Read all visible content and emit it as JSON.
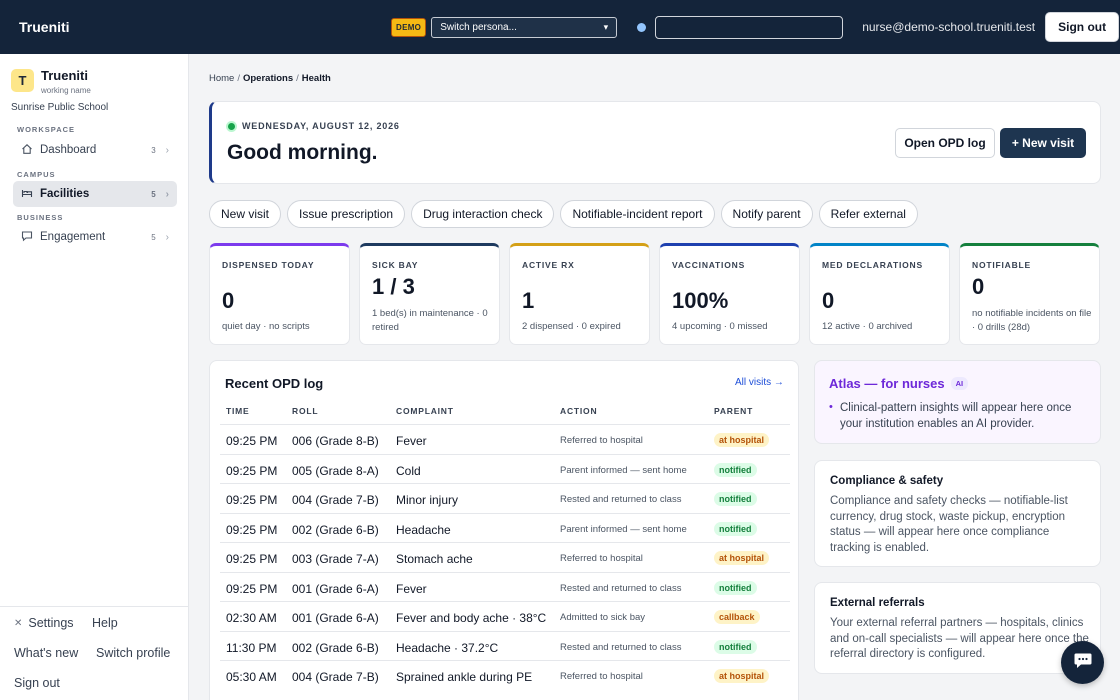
{
  "app": {
    "brand": "Trueniti",
    "demo_badge": "DEMO",
    "persona_select": "Switch persona...",
    "search_placeholder": "",
    "user_email": "nurse@demo-school.trueniti.test",
    "sign_out": "Sign out"
  },
  "sidebar": {
    "org_initial": "T",
    "org_name": "Trueniti",
    "org_sub": "working name",
    "school": "Sunrise Public School",
    "sections": [
      "WORKSPACE",
      "CAMPUS",
      "BUSINESS"
    ],
    "items": [
      {
        "label": "Dashboard",
        "count": "3",
        "icon": "home-icon"
      },
      {
        "label": "Facilities",
        "count": "5",
        "icon": "bed-icon"
      },
      {
        "label": "Engagement",
        "count": "5",
        "icon": "chat-icon"
      }
    ],
    "footer": {
      "settings": "Settings",
      "help": "Help",
      "whats_new": "What's new",
      "switch_profile": "Switch profile",
      "sign_out": "Sign out"
    }
  },
  "breadcrumb": [
    "Home",
    "Operations",
    "Health"
  ],
  "hero": {
    "date": "WEDNESDAY, AUGUST 12, 2026",
    "greeting": "Good morning.",
    "open_log": "Open OPD log",
    "new_visit": "+ New visit"
  },
  "quick_actions": [
    "New visit",
    "Issue prescription",
    "Drug interaction check",
    "Notifiable-incident report",
    "Notify parent",
    "Refer external"
  ],
  "stats": [
    {
      "label": "DISPENSED TODAY",
      "value": "0",
      "sub": "quiet day · no scripts",
      "color": "#7c3aed"
    },
    {
      "label": "SICK BAY",
      "value": "1 / 3",
      "sub": "1 bed(s) in maintenance · 0 retired",
      "color": "#1e3a5f"
    },
    {
      "label": "ACTIVE RX",
      "value": "1",
      "sub": "2 dispensed · 0 expired",
      "color": "#d4a017"
    },
    {
      "label": "VACCINATIONS",
      "value": "100%",
      "sub": "4 upcoming · 0 missed",
      "color": "#1e40af"
    },
    {
      "label": "MED DECLARATIONS",
      "value": "0",
      "sub": "12 active · 0 archived",
      "color": "#0284c7"
    },
    {
      "label": "NOTIFIABLE",
      "value": "0",
      "sub": "no notifiable incidents on file · 0 drills (28d)",
      "color": "#15803d"
    }
  ],
  "opd": {
    "title": "Recent OPD log",
    "all_visits": "All visits →",
    "columns": [
      "TIME",
      "ROLL",
      "COMPLAINT",
      "ACTION",
      "PARENT"
    ],
    "rows": [
      {
        "time": "09:25 PM",
        "roll": "006 (Grade 8-B)",
        "complaint": "Fever",
        "action": "Referred to hospital",
        "parent": "at hospital",
        "kind": "hospital"
      },
      {
        "time": "09:25 PM",
        "roll": "005 (Grade 8-A)",
        "complaint": "Cold",
        "action": "Parent informed — sent home",
        "parent": "notified",
        "kind": "notified"
      },
      {
        "time": "09:25 PM",
        "roll": "004 (Grade 7-B)",
        "complaint": "Minor injury",
        "action": "Rested and returned to class",
        "parent": "notified",
        "kind": "notified"
      },
      {
        "time": "09:25 PM",
        "roll": "002 (Grade 6-B)",
        "complaint": "Headache",
        "action": "Parent informed — sent home",
        "parent": "notified",
        "kind": "notified"
      },
      {
        "time": "09:25 PM",
        "roll": "003 (Grade 7-A)",
        "complaint": "Stomach ache",
        "action": "Referred to hospital",
        "parent": "at hospital",
        "kind": "hospital"
      },
      {
        "time": "09:25 PM",
        "roll": "001 (Grade 6-A)",
        "complaint": "Fever",
        "action": "Rested and returned to class",
        "parent": "notified",
        "kind": "notified"
      },
      {
        "time": "02:30 AM",
        "roll": "001 (Grade 6-A)",
        "complaint": "Fever and body ache · 38°C",
        "action": "Admitted to sick bay",
        "parent": "callback",
        "kind": "callback"
      },
      {
        "time": "11:30 PM",
        "roll": "002 (Grade 6-B)",
        "complaint": "Headache · 37.2°C",
        "action": "Rested and returned to class",
        "parent": "notified",
        "kind": "notified"
      },
      {
        "time": "05:30 AM",
        "roll": "004 (Grade 7-B)",
        "complaint": "Sprained ankle during PE",
        "action": "Referred to hospital",
        "parent": "at hospital",
        "kind": "hospital"
      }
    ]
  },
  "atlas": {
    "title": "Atlas — for nurses",
    "badge": "AI",
    "text": "Clinical-pattern insights will appear here once your institution enables an AI provider."
  },
  "compliance": {
    "title": "Compliance & safety",
    "text": "Compliance and safety checks — notifiable-list currency, drug stock, waste pickup, encryption status — will appear here once compliance tracking is enabled."
  },
  "referrals": {
    "title": "External referrals",
    "text": "Your external referral partners — hospitals, clinics and on-call specialists — will appear here once the referral directory is configured."
  }
}
